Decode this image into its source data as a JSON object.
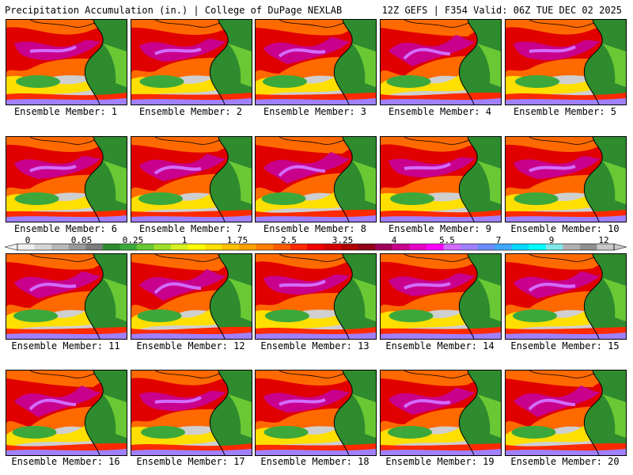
{
  "header": {
    "title_left": "Precipitation Accumulation (in.) | College of DuPage NEXLAB",
    "title_right": "12Z GEFS | F354 Valid: 06Z TUE DEC 02 2025"
  },
  "panels": [
    {
      "caption": "Ensemble Member: 1"
    },
    {
      "caption": "Ensemble Member: 2"
    },
    {
      "caption": "Ensemble Member: 3"
    },
    {
      "caption": "Ensemble Member: 4"
    },
    {
      "caption": "Ensemble Member: 5"
    },
    {
      "caption": "Ensemble Member: 6"
    },
    {
      "caption": "Ensemble Member: 7"
    },
    {
      "caption": "Ensemble Member: 8"
    },
    {
      "caption": "Ensemble Member: 9"
    },
    {
      "caption": "Ensemble Member: 10"
    },
    {
      "caption": "Ensemble Member: 11"
    },
    {
      "caption": "Ensemble Member: 12"
    },
    {
      "caption": "Ensemble Member: 13"
    },
    {
      "caption": "Ensemble Member: 14"
    },
    {
      "caption": "Ensemble Member: 15"
    },
    {
      "caption": "Ensemble Member: 16"
    },
    {
      "caption": "Ensemble Member: 17"
    },
    {
      "caption": "Ensemble Member: 18"
    },
    {
      "caption": "Ensemble Member: 19"
    },
    {
      "caption": "Ensemble Member: 20"
    }
  ],
  "colorbar": {
    "tick_labels": [
      "0",
      "0.05",
      "0.25",
      "1",
      "1.75",
      "2.5",
      "3.25",
      "4",
      "5.5",
      "7",
      "9",
      "12"
    ],
    "colors": [
      "#f0f0f0",
      "#d6d6d6",
      "#b8b8b8",
      "#9a9a9a",
      "#7c7c7c",
      "#2e8b2e",
      "#3ca83c",
      "#6ac834",
      "#9ee028",
      "#d8f020",
      "#ffff00",
      "#ffdf00",
      "#ffc000",
      "#ffa000",
      "#ff7f00",
      "#ff5a00",
      "#ff2a00",
      "#f00000",
      "#d40000",
      "#b00000",
      "#900018",
      "#a0005a",
      "#c8008c",
      "#e600c8",
      "#ff00ff",
      "#d36cff",
      "#a080ff",
      "#6a8cff",
      "#40a8ff",
      "#00d8ff",
      "#00ffff",
      "#80e8e8",
      "#b0b0b0",
      "#909090",
      "#c8c8c8"
    ]
  }
}
